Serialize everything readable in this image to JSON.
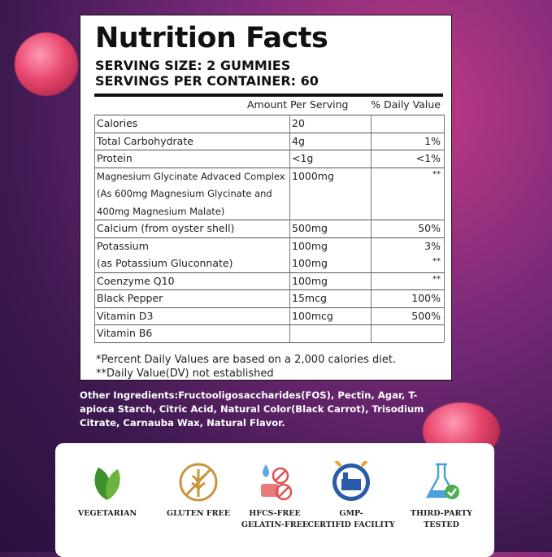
{
  "title": "Nutrition Facts",
  "serving_size": "SERVING SIZE: 2 GUMMIES",
  "servings_per_container": "SERVINGS PER CONTAINER: 60",
  "table": {
    "header": [
      "Amount Per Serving",
      "%  Daily Value"
    ],
    "rows": [
      {
        "lines": [
          {
            "name": "Calories",
            "amount": "20"
          }
        ]
      },
      {
        "lines": [
          {
            "name": "Total Carbohydrate",
            "amount": "4g",
            "dv": "1%"
          }
        ]
      },
      {
        "lines": [
          {
            "name": "Protein",
            "amount": "<1g",
            "dv": "<1%"
          }
        ]
      },
      {
        "lines": [
          {
            "name": "Magnesium Glycinate Advaced Complex",
            "amount": "1000mg",
            "dv": "**"
          },
          {
            "name": "(As 600mg Magnesium Glycinate and"
          },
          {
            "name": "400mg Magnesium Malate)"
          }
        ]
      },
      {
        "lines": [
          {
            "name": "Calcium (from oyster shell)",
            "amount": "500mg",
            "dv": "50%"
          }
        ]
      },
      {
        "lines": [
          {
            "name": "Potassium",
            "amount": "100mg",
            "dv": "3%"
          },
          {
            "name": "(as Potassium Gluconnate)",
            "amount": "100mg",
            "dv": "**"
          }
        ]
      },
      {
        "lines": [
          {
            "name": "Coenzyme Q10",
            "amount": "100mg",
            "dv": "**"
          }
        ]
      },
      {
        "lines": [
          {
            "name": "Black Pepper",
            "amount": "15mcg",
            "dv": "100%"
          }
        ]
      },
      {
        "lines": [
          {
            "name": "Vitamin D3",
            "amount": "100mcg",
            "dv": "500%"
          }
        ]
      },
      {
        "lines": [
          {
            "name": "Vitamin B6"
          }
        ]
      }
    ]
  },
  "footnotes": [
    "*Percent Daily Values are based on a 2,000 calories diet.",
    "**Daily Value(DV) not established"
  ],
  "other_ingredients": [
    "Other Ingredients:Fructooligosaccharides(FOS), Pectin, Agar, T-",
    "apioca Starch, Citric Acid, Natural Color(Black Carrot), Trisodium",
    "Citrate, Carnauba Wax, Natural Flavor."
  ],
  "badges": [
    [
      "VEGETARIAN"
    ],
    [
      "GLUTEN FREE"
    ],
    [
      "HFCS-FREE",
      "GELATIN-FREE"
    ],
    [
      "GMP-",
      "CERTIFID FACILITY"
    ],
    [
      "THIRD-PARTY",
      "TESTED"
    ]
  ]
}
